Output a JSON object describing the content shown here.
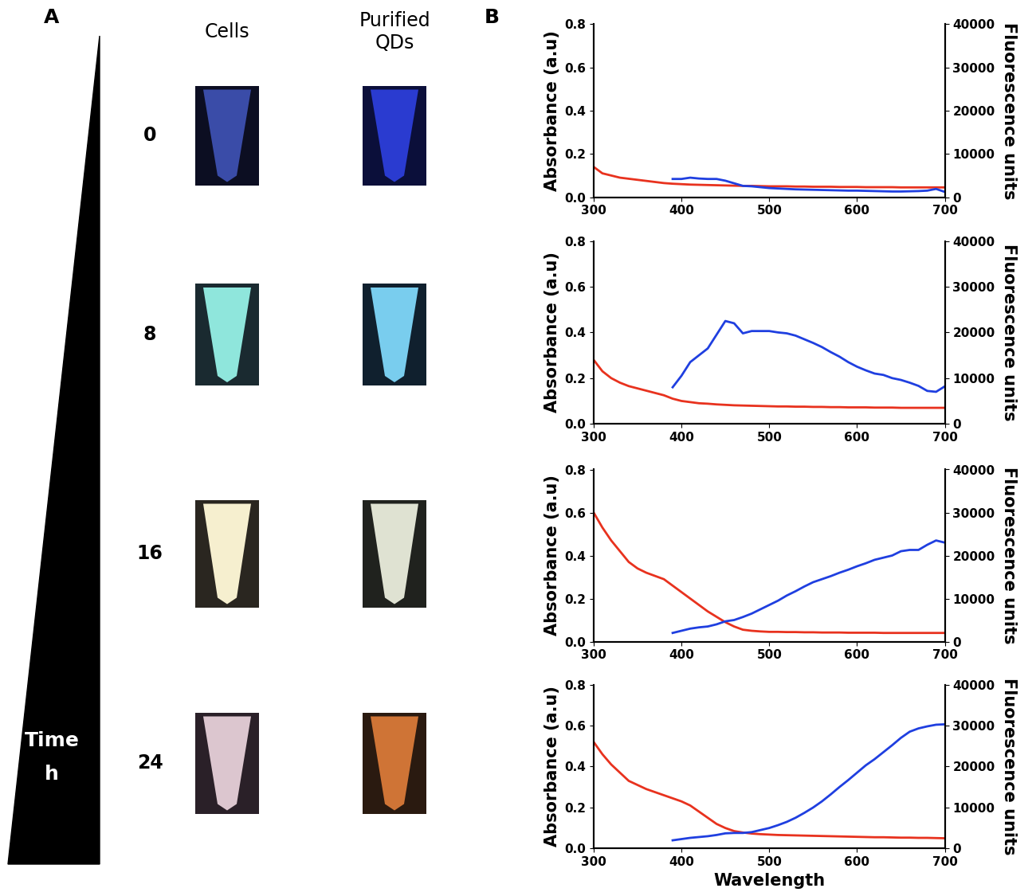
{
  "panel_a": {
    "label": "A",
    "columns": [
      "Cells",
      "Purified\nQDs"
    ],
    "times": [
      "0",
      "8",
      "16",
      "24"
    ],
    "time_label": "Time",
    "time_unit": "h"
  },
  "panel_b": {
    "label": "B"
  },
  "chart_data": [
    {
      "type": "line",
      "x": [
        300,
        310,
        320,
        330,
        340,
        350,
        360,
        370,
        380,
        390,
        400,
        410,
        420,
        430,
        440,
        450,
        460,
        470,
        480,
        490,
        500,
        510,
        520,
        530,
        540,
        550,
        560,
        570,
        580,
        590,
        600,
        610,
        620,
        630,
        640,
        650,
        660,
        670,
        680,
        690,
        700
      ],
      "xlim": [
        300,
        700
      ],
      "xticks": [
        300,
        400,
        500,
        600,
        700
      ],
      "ylim": [
        0,
        0.8
      ],
      "yticks": [
        {
          "value": 0,
          "label": "0.0"
        },
        0.2,
        0.4,
        0.6,
        0.8
      ],
      "y2lim": [
        0,
        40000
      ],
      "y2ticks": [
        0,
        10000,
        20000,
        30000,
        40000
      ],
      "y_label": "Absorbance (a.u)",
      "y2_label": "Fluorescence units",
      "series": [
        {
          "color": "#e8321e",
          "values": [
            0.14,
            0.11,
            0.1,
            0.09,
            0.085,
            0.08,
            0.075,
            0.07,
            0.065,
            0.062,
            0.06,
            0.058,
            0.057,
            0.056,
            0.055,
            0.054,
            0.053,
            0.052,
            0.052,
            0.051,
            0.05,
            0.05,
            0.05,
            0.049,
            0.049,
            0.048,
            0.048,
            0.048,
            0.047,
            0.047,
            0.047,
            0.046,
            0.046,
            0.046,
            0.046,
            0.045,
            0.045,
            0.045,
            0.045,
            0.045,
            0.045
          ]
        },
        {
          "color": "#1f3fe0",
          "axis": "y2",
          "values": [
            null,
            null,
            null,
            null,
            null,
            null,
            null,
            null,
            null,
            4200,
            4200,
            4500,
            4300,
            4200,
            4200,
            3800,
            3200,
            2600,
            2500,
            2300,
            2100,
            2000,
            1900,
            1800,
            1750,
            1700,
            1650,
            1600,
            1550,
            1500,
            1500,
            1450,
            1400,
            1350,
            1300,
            1300,
            1350,
            1400,
            1500,
            1900,
            1200
          ]
        }
      ]
    },
    {
      "type": "line",
      "x": [
        300,
        310,
        320,
        330,
        340,
        350,
        360,
        370,
        380,
        390,
        400,
        410,
        420,
        430,
        440,
        450,
        460,
        470,
        480,
        490,
        500,
        510,
        520,
        530,
        540,
        550,
        560,
        570,
        580,
        590,
        600,
        610,
        620,
        630,
        640,
        650,
        660,
        670,
        680,
        690,
        700
      ],
      "xlim": [
        300,
        700
      ],
      "xticks": [
        300,
        400,
        500,
        600,
        700
      ],
      "ylim": [
        0,
        0.8
      ],
      "yticks": [
        {
          "value": 0,
          "label": "0.0"
        },
        0.2,
        0.4,
        0.6,
        0.8
      ],
      "y2lim": [
        0,
        40000
      ],
      "y2ticks": [
        0,
        10000,
        20000,
        30000,
        40000
      ],
      "y_label": "Absorbance (a.u)",
      "y2_label": "Fluorescence units",
      "series": [
        {
          "color": "#e8321e",
          "values": [
            0.28,
            0.23,
            0.2,
            0.18,
            0.165,
            0.155,
            0.145,
            0.135,
            0.125,
            0.11,
            0.1,
            0.095,
            0.09,
            0.088,
            0.085,
            0.083,
            0.081,
            0.08,
            0.079,
            0.078,
            0.077,
            0.076,
            0.076,
            0.075,
            0.075,
            0.074,
            0.074,
            0.073,
            0.073,
            0.072,
            0.072,
            0.072,
            0.071,
            0.071,
            0.071,
            0.07,
            0.07,
            0.07,
            0.07,
            0.07,
            0.07
          ]
        },
        {
          "color": "#1f3fe0",
          "axis": "y2",
          "values": [
            null,
            null,
            null,
            null,
            null,
            null,
            null,
            null,
            null,
            8000,
            10500,
            13500,
            15000,
            16500,
            19500,
            22500,
            22000,
            19800,
            20300,
            20300,
            20300,
            20000,
            19800,
            19300,
            18500,
            17700,
            16800,
            15700,
            14700,
            13500,
            12500,
            11700,
            11000,
            10700,
            10000,
            9600,
            9000,
            8300,
            7200,
            7000,
            8200
          ]
        }
      ]
    },
    {
      "type": "line",
      "x": [
        300,
        310,
        320,
        330,
        340,
        350,
        360,
        370,
        380,
        390,
        400,
        410,
        420,
        430,
        440,
        450,
        460,
        470,
        480,
        490,
        500,
        510,
        520,
        530,
        540,
        550,
        560,
        570,
        580,
        590,
        600,
        610,
        620,
        630,
        640,
        650,
        660,
        670,
        680,
        690,
        700
      ],
      "xlim": [
        300,
        700
      ],
      "xticks": [
        300,
        400,
        500,
        600,
        700
      ],
      "ylim": [
        0,
        0.8
      ],
      "yticks": [
        {
          "value": 0,
          "label": "0.0"
        },
        0.2,
        0.4,
        0.6,
        0.8
      ],
      "y2lim": [
        0,
        40000
      ],
      "y2ticks": [
        0,
        10000,
        20000,
        30000,
        40000
      ],
      "y_label": "Absorbance (a.u)",
      "y2_label": "Fluorescence units",
      "series": [
        {
          "color": "#e8321e",
          "values": [
            0.6,
            0.53,
            0.47,
            0.42,
            0.37,
            0.34,
            0.32,
            0.305,
            0.29,
            0.26,
            0.23,
            0.2,
            0.17,
            0.14,
            0.115,
            0.09,
            0.07,
            0.055,
            0.05,
            0.047,
            0.045,
            0.045,
            0.044,
            0.044,
            0.043,
            0.043,
            0.042,
            0.042,
            0.042,
            0.041,
            0.041,
            0.041,
            0.041,
            0.04,
            0.04,
            0.04,
            0.04,
            0.04,
            0.04,
            0.04,
            0.04
          ]
        },
        {
          "color": "#1f3fe0",
          "axis": "y2",
          "values": [
            null,
            null,
            null,
            null,
            null,
            null,
            null,
            null,
            null,
            2000,
            2500,
            3000,
            3300,
            3500,
            4000,
            4700,
            5000,
            5700,
            6500,
            7500,
            8500,
            9500,
            10700,
            11700,
            12800,
            13800,
            14500,
            15200,
            16000,
            16700,
            17500,
            18200,
            19000,
            19500,
            20000,
            21000,
            21300,
            21300,
            22500,
            23500,
            23000
          ]
        }
      ]
    },
    {
      "type": "line",
      "x": [
        300,
        310,
        320,
        330,
        340,
        350,
        360,
        370,
        380,
        390,
        400,
        410,
        420,
        430,
        440,
        450,
        460,
        470,
        480,
        490,
        500,
        510,
        520,
        530,
        540,
        550,
        560,
        570,
        580,
        590,
        600,
        610,
        620,
        630,
        640,
        650,
        660,
        670,
        680,
        690,
        700
      ],
      "xlim": [
        300,
        700
      ],
      "xticks": [
        300,
        400,
        500,
        600,
        700
      ],
      "ylim": [
        0,
        0.8
      ],
      "yticks": [
        {
          "value": 0,
          "label": "0.0"
        },
        0.2,
        0.4,
        0.6,
        0.8
      ],
      "y2lim": [
        0,
        40000
      ],
      "y2ticks": [
        0,
        10000,
        20000,
        30000,
        40000
      ],
      "x_label": "Wavelength",
      "y_label": "Absorbance (a.u)",
      "y2_label": "Fluorescence units",
      "series": [
        {
          "color": "#e8321e",
          "values": [
            0.52,
            0.46,
            0.41,
            0.37,
            0.33,
            0.31,
            0.29,
            0.275,
            0.26,
            0.245,
            0.23,
            0.21,
            0.18,
            0.15,
            0.12,
            0.1,
            0.085,
            0.078,
            0.073,
            0.07,
            0.068,
            0.066,
            0.065,
            0.064,
            0.063,
            0.062,
            0.061,
            0.06,
            0.059,
            0.058,
            0.057,
            0.056,
            0.055,
            0.055,
            0.054,
            0.053,
            0.053,
            0.052,
            0.052,
            0.051,
            0.05
          ]
        },
        {
          "color": "#1f3fe0",
          "axis": "y2",
          "values": [
            null,
            null,
            null,
            null,
            null,
            null,
            null,
            null,
            null,
            2000,
            2300,
            2600,
            2800,
            3000,
            3300,
            3700,
            3800,
            3800,
            4000,
            4500,
            5000,
            5700,
            6500,
            7500,
            8700,
            10000,
            11500,
            13200,
            15000,
            16700,
            18500,
            20300,
            21800,
            23500,
            25200,
            27000,
            28500,
            29300,
            29800,
            30200,
            30300
          ]
        }
      ]
    }
  ]
}
